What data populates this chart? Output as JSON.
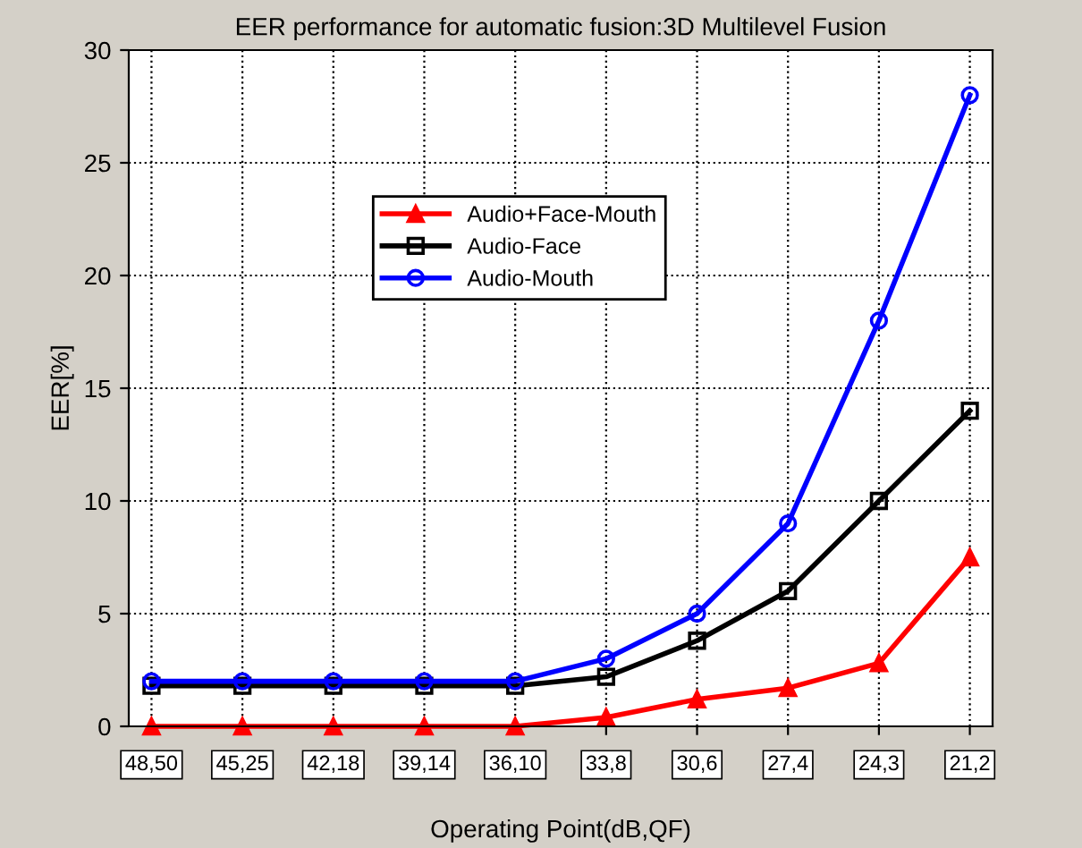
{
  "chart_data": {
    "type": "line",
    "title": "EER performance for automatic fusion:3D Multilevel Fusion",
    "xlabel": "Operating Point(dB,QF)",
    "ylabel": "EER[%]",
    "categories": [
      "48,50",
      "45,25",
      "42,18",
      "39,14",
      "36,10",
      "33,8",
      "30,6",
      "27,4",
      "24,3",
      "21,2"
    ],
    "series": [
      {
        "name": "Audio+Face-Mouth",
        "color": "#ff0000",
        "marker": "triangle",
        "values": [
          0,
          0,
          0,
          0,
          0,
          0.4,
          1.2,
          1.7,
          2.8,
          7.5
        ]
      },
      {
        "name": "Audio-Face",
        "color": "#000000",
        "marker": "square",
        "values": [
          1.8,
          1.8,
          1.8,
          1.8,
          1.8,
          2.2,
          3.8,
          6,
          10,
          14
        ]
      },
      {
        "name": "Audio-Mouth",
        "color": "#0000ff",
        "marker": "circle",
        "values": [
          2,
          2,
          2,
          2,
          2,
          3,
          5,
          9,
          18,
          28
        ]
      }
    ],
    "ylim": [
      0,
      30
    ],
    "yticks": [
      0,
      5,
      10,
      15,
      20,
      25,
      30
    ],
    "grid": true,
    "legend": "top left",
    "line_style": "solid"
  }
}
